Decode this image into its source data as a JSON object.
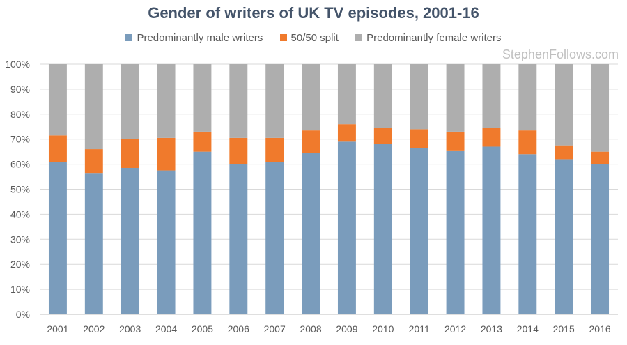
{
  "chart_data": {
    "type": "bar",
    "stacked": true,
    "title": "Gender of writers of UK TV episodes, 2001-16",
    "xlabel": "",
    "ylabel": "",
    "ylim": [
      0,
      100
    ],
    "y_ticks": [
      "0%",
      "10%",
      "20%",
      "30%",
      "40%",
      "50%",
      "60%",
      "70%",
      "80%",
      "90%",
      "100%"
    ],
    "categories": [
      "2001",
      "2002",
      "2003",
      "2004",
      "2005",
      "2006",
      "2007",
      "2008",
      "2009",
      "2010",
      "2011",
      "2012",
      "2013",
      "2014",
      "2015",
      "2016"
    ],
    "series": [
      {
        "name": "Predominantly male writers",
        "color": "#7a9cbc",
        "values": [
          61,
          56.5,
          58.5,
          57.5,
          65,
          60,
          61,
          64.5,
          69,
          68,
          66.5,
          65.5,
          67,
          64,
          62,
          60
        ]
      },
      {
        "name": "50/50 split",
        "color": "#f07a2c",
        "values": [
          10.5,
          9.5,
          11.5,
          13,
          8,
          10.5,
          9.5,
          9,
          7,
          6.5,
          7.5,
          7.5,
          7.5,
          9.5,
          5.5,
          5
        ]
      },
      {
        "name": "Predominantly female writers",
        "color": "#aeaeae",
        "values": [
          28.5,
          34,
          30,
          29.5,
          27,
          29.5,
          29.5,
          26.5,
          24,
          25.5,
          26,
          27,
          25.5,
          26.5,
          32.5,
          35
        ]
      }
    ],
    "grid": true,
    "legend_position": "top-center"
  },
  "watermark": "StephenFollows.com"
}
